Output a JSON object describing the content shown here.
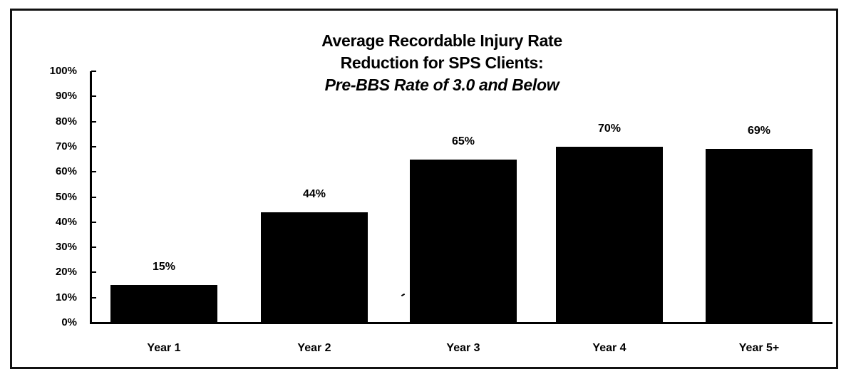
{
  "chart_data": {
    "type": "bar",
    "title": "Average Recordable Injury Rate Reduction for SPS Clients:",
    "subtitle": "Pre-BBS Rate of 3.0 and Below",
    "title_lines": [
      "Average Recordable Injury Rate",
      "Reduction for SPS Clients:",
      "Pre-BBS Rate of 3.0 and Below"
    ],
    "categories": [
      "Year 1",
      "Year 2",
      "Year 3",
      "Year 4",
      "Year 5+"
    ],
    "values": [
      15,
      44,
      65,
      70,
      69
    ],
    "data_labels": [
      "15%",
      "44%",
      "65%",
      "70%",
      "69%"
    ],
    "xlabel": "",
    "ylabel": "",
    "ylim": [
      0,
      100
    ],
    "yticks": [
      "0%",
      "10%",
      "20%",
      "30%",
      "40%",
      "50%",
      "60%",
      "70%",
      "80%",
      "90%",
      "100%"
    ],
    "grid": false,
    "legend": null,
    "bar_color": "#000000"
  }
}
